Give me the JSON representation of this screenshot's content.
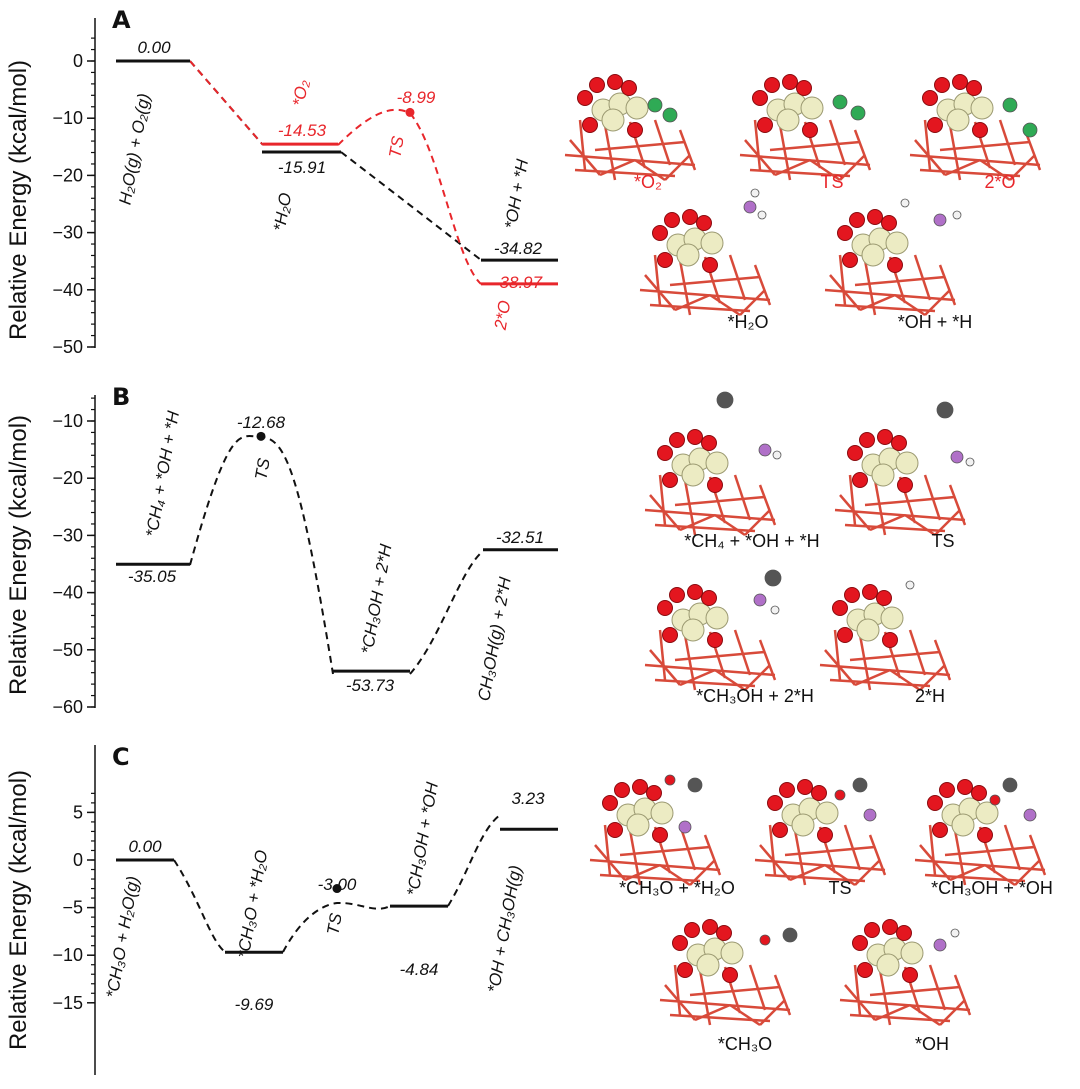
{
  "colors": {
    "black": "#111111",
    "red": "#e8262b"
  },
  "panels": [
    {
      "letter": "A",
      "ylabel": "Relative Energy (kcal/mol)",
      "ylim": [
        -50,
        5
      ],
      "yticks": [
        0,
        -10,
        -20,
        -30,
        -40,
        -50
      ],
      "tick_labels": [
        "0",
        "−10",
        "−20",
        "−30",
        "−40",
        "−50"
      ],
      "levels": [
        {
          "label": "0.00",
          "value": 0.0,
          "color": "black"
        },
        {
          "label": "-14.53",
          "value": -14.53,
          "color": "red"
        },
        {
          "label": "-15.91",
          "value": -15.91,
          "color": "black"
        },
        {
          "label": "-8.99",
          "value": -8.99,
          "color": "red"
        },
        {
          "label": "-34.82",
          "value": -34.82,
          "color": "black"
        },
        {
          "label": "-38.97",
          "value": -38.97,
          "color": "red"
        }
      ],
      "states": [
        {
          "text": "H₂O(g) + O₂(g)",
          "color": "black"
        },
        {
          "text": "*O₂",
          "color": "red"
        },
        {
          "text": "*H₂O",
          "color": "black"
        },
        {
          "text": "TS",
          "color": "red"
        },
        {
          "text": "*OH + *H",
          "color": "black"
        },
        {
          "text": "2*O",
          "color": "red"
        }
      ],
      "structures": [
        "*O₂",
        "TS",
        "2*O",
        "*H₂O",
        "*OH + *H"
      ]
    },
    {
      "letter": "B",
      "ylabel": "Relative Energy (kcal/mol)",
      "ylim": [
        -60,
        -5
      ],
      "yticks": [
        -10,
        -20,
        -30,
        -40,
        -50,
        -60
      ],
      "tick_labels": [
        "−10",
        "−20",
        "−30",
        "−40",
        "−50",
        "−60"
      ],
      "levels": [
        {
          "label": "-35.05",
          "value": -35.05,
          "color": "black"
        },
        {
          "label": "-12.68",
          "value": -12.68,
          "color": "black"
        },
        {
          "label": "-53.73",
          "value": -53.73,
          "color": "black"
        },
        {
          "label": "-32.51",
          "value": -32.51,
          "color": "black"
        }
      ],
      "states": [
        {
          "text": "*CH₄ + *OH + *H",
          "color": "black"
        },
        {
          "text": "TS",
          "color": "black"
        },
        {
          "text": "*CH₃OH + 2*H",
          "color": "black"
        },
        {
          "text": "CH₃OH(g) + 2*H",
          "color": "black"
        }
      ],
      "structures": [
        "*CH₄ + *OH + *H",
        "TS",
        "*CH₃OH + 2*H",
        "2*H"
      ]
    },
    {
      "letter": "C",
      "ylabel": "Relative Energy (kcal/mol)",
      "ylim": [
        -15,
        7.5
      ],
      "yticks": [
        5,
        0,
        -5,
        -10,
        -15
      ],
      "tick_labels": [
        "5",
        "0",
        "−5",
        "−10",
        "−15"
      ],
      "levels": [
        {
          "label": "0.00",
          "value": 0.0,
          "color": "black"
        },
        {
          "label": "-9.69",
          "value": -9.69,
          "color": "black"
        },
        {
          "label": "-3.00",
          "value": -3.0,
          "color": "black"
        },
        {
          "label": "-4.84",
          "value": -4.84,
          "color": "black"
        },
        {
          "label": "3.23",
          "value": 3.23,
          "color": "black"
        }
      ],
      "states": [
        {
          "text": "*CH₃O + H₂O(g)",
          "color": "black"
        },
        {
          "text": "*CH₃O + *H₂O",
          "color": "black"
        },
        {
          "text": "TS",
          "color": "black"
        },
        {
          "text": "*CH₃OH + *OH",
          "color": "black"
        },
        {
          "text": "*OH + CH₃OH(g)",
          "color": "black"
        }
      ],
      "structures": [
        "*CH₃O + *H₂O",
        "TS",
        "*CH₃OH + *OH",
        "*CH₃O",
        "*OH"
      ]
    }
  ],
  "chart_data": [
    {
      "type": "line",
      "title": "",
      "ylabel": "Relative Energy (kcal/mol)",
      "ylim": [
        -50,
        5
      ],
      "series": [
        {
          "name": "",
          "color": "#111111",
          "x": [
            "H2O(g) + O2(g)",
            "*H2O",
            "*OH + *H"
          ],
          "values": [
            0.0,
            -15.91,
            -34.82
          ]
        },
        {
          "name": "",
          "color": "#e8262b",
          "x": [
            "*O2",
            "TS",
            "2*O"
          ],
          "values": [
            -14.53,
            -8.99,
            -38.97
          ]
        }
      ]
    },
    {
      "type": "line",
      "title": "",
      "ylabel": "Relative Energy (kcal/mol)",
      "ylim": [
        -60,
        -5
      ],
      "series": [
        {
          "name": "",
          "color": "#111111",
          "x": [
            "*CH4 + *OH + *H",
            "TS",
            "*CH3OH + 2*H",
            "CH3OH(g) + 2*H"
          ],
          "values": [
            -35.05,
            -12.68,
            -53.73,
            -32.51
          ]
        }
      ]
    },
    {
      "type": "line",
      "title": "",
      "ylabel": "Relative Energy (kcal/mol)",
      "ylim": [
        -15,
        7.5
      ],
      "series": [
        {
          "name": "",
          "color": "#111111",
          "x": [
            "*CH3O + H2O(g)",
            "*CH3O + *H2O",
            "TS",
            "*CH3OH + *OH",
            "*OH + CH3OH(g)"
          ],
          "values": [
            0.0,
            -9.69,
            -3.0,
            -4.84,
            3.23
          ]
        }
      ]
    }
  ]
}
